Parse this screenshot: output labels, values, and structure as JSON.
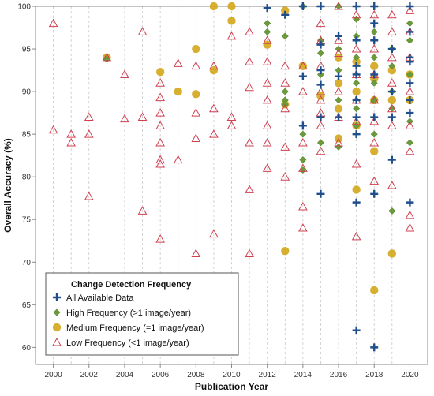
{
  "chart_data": {
    "type": "scatter",
    "xlabel": "Publication Year",
    "ylabel": "Overall Accuracy (%)",
    "xlim": [
      1999,
      2021
    ],
    "ylim": [
      58,
      100
    ],
    "x_ticks": [
      2000,
      2002,
      2004,
      2006,
      2008,
      2010,
      2012,
      2014,
      2016,
      2018,
      2020
    ],
    "y_ticks": [
      60,
      65,
      70,
      75,
      80,
      85,
      90,
      95,
      100
    ],
    "grid": "vertical dashed",
    "legend": {
      "title": "Change Detection Frequency",
      "placement": "bottom-left"
    },
    "series": [
      {
        "name": "All Available Data",
        "marker": "plus",
        "color": "#1f4e8c",
        "points": [
          [
            2012,
            99.8
          ],
          [
            2013,
            99
          ],
          [
            2014,
            100
          ],
          [
            2014,
            91.8
          ],
          [
            2014,
            86
          ],
          [
            2015,
            100
          ],
          [
            2015,
            95.5
          ],
          [
            2015,
            92.5
          ],
          [
            2015,
            90.8
          ],
          [
            2015,
            87
          ],
          [
            2015,
            78
          ],
          [
            2016,
            96.5
          ],
          [
            2016,
            91.8
          ],
          [
            2016,
            87
          ],
          [
            2017,
            100
          ],
          [
            2017,
            96
          ],
          [
            2017,
            93
          ],
          [
            2017,
            92
          ],
          [
            2017,
            89
          ],
          [
            2017,
            87
          ],
          [
            2017,
            85
          ],
          [
            2017,
            77
          ],
          [
            2017,
            62
          ],
          [
            2018,
            100
          ],
          [
            2018,
            98
          ],
          [
            2018,
            96
          ],
          [
            2018,
            92
          ],
          [
            2018,
            87
          ],
          [
            2018,
            78
          ],
          [
            2018,
            60
          ],
          [
            2019,
            95
          ],
          [
            2019,
            90
          ],
          [
            2019,
            87
          ],
          [
            2019,
            82
          ],
          [
            2020,
            100
          ],
          [
            2020,
            97
          ],
          [
            2020,
            94
          ],
          [
            2020,
            93.5
          ],
          [
            2020,
            91
          ],
          [
            2020,
            89
          ],
          [
            2020,
            87.5
          ],
          [
            2020,
            77
          ]
        ]
      },
      {
        "name": "High Frequency (>1 image/year)",
        "marker": "diamond",
        "color": "#6a9a3a",
        "points": [
          [
            2003,
            93.8
          ],
          [
            2012,
            98
          ],
          [
            2012,
            97
          ],
          [
            2013,
            96.5
          ],
          [
            2013,
            90
          ],
          [
            2013,
            89
          ],
          [
            2013,
            88.5
          ],
          [
            2014,
            100
          ],
          [
            2014,
            85
          ],
          [
            2014,
            82
          ],
          [
            2014,
            80.8
          ],
          [
            2015,
            96
          ],
          [
            2015,
            94.5
          ],
          [
            2015,
            92
          ],
          [
            2015,
            84
          ],
          [
            2016,
            100
          ],
          [
            2016,
            95
          ],
          [
            2016,
            92.5
          ],
          [
            2016,
            89
          ],
          [
            2016,
            83.5
          ],
          [
            2017,
            98.5
          ],
          [
            2017,
            96.5
          ],
          [
            2017,
            94
          ],
          [
            2017,
            91
          ],
          [
            2017,
            88
          ],
          [
            2017,
            86
          ],
          [
            2018,
            97
          ],
          [
            2018,
            94
          ],
          [
            2018,
            91
          ],
          [
            2018,
            89
          ],
          [
            2018,
            85
          ],
          [
            2019,
            95
          ],
          [
            2019,
            93
          ],
          [
            2019,
            90
          ],
          [
            2019,
            88
          ],
          [
            2019,
            76
          ],
          [
            2020,
            98
          ],
          [
            2020,
            96
          ],
          [
            2020,
            92
          ],
          [
            2020,
            86.5
          ],
          [
            2020,
            84
          ]
        ]
      },
      {
        "name": "Medium Frequency (=1 image/year)",
        "marker": "circle",
        "color": "#d4a820",
        "points": [
          [
            2003,
            94
          ],
          [
            2006,
            92.3
          ],
          [
            2007,
            90
          ],
          [
            2008,
            95
          ],
          [
            2008,
            89.7
          ],
          [
            2009,
            100
          ],
          [
            2009,
            92.5
          ],
          [
            2010,
            100
          ],
          [
            2010,
            98.3
          ],
          [
            2012,
            95.5
          ],
          [
            2013,
            99.5
          ],
          [
            2013,
            88.5
          ],
          [
            2013,
            71.3
          ],
          [
            2014,
            93
          ],
          [
            2015,
            89.5
          ],
          [
            2016,
            94
          ],
          [
            2016,
            91
          ],
          [
            2016,
            88
          ],
          [
            2016,
            84.5
          ],
          [
            2017,
            93.5
          ],
          [
            2017,
            90
          ],
          [
            2017,
            86
          ],
          [
            2017,
            78.5
          ],
          [
            2018,
            93
          ],
          [
            2018,
            91.5
          ],
          [
            2018,
            89
          ],
          [
            2018,
            83
          ],
          [
            2018,
            66.7
          ],
          [
            2019,
            92.5
          ],
          [
            2019,
            89
          ],
          [
            2019,
            71
          ],
          [
            2020,
            92
          ],
          [
            2020,
            89
          ]
        ]
      },
      {
        "name": "Low Frequency (<1 image/year)",
        "marker": "triangle",
        "color": "#d04050",
        "points": [
          [
            2000,
            98
          ],
          [
            2000,
            85.5
          ],
          [
            2001,
            85
          ],
          [
            2001,
            84
          ],
          [
            2002,
            87
          ],
          [
            2002,
            85
          ],
          [
            2002,
            77.7
          ],
          [
            2003,
            94
          ],
          [
            2004,
            92
          ],
          [
            2004,
            86.8
          ],
          [
            2005,
            97
          ],
          [
            2005,
            87
          ],
          [
            2005,
            76
          ],
          [
            2006,
            91
          ],
          [
            2006,
            89.3
          ],
          [
            2006,
            87.5
          ],
          [
            2006,
            86
          ],
          [
            2006,
            84
          ],
          [
            2006,
            82
          ],
          [
            2006,
            81.5
          ],
          [
            2006,
            72.7
          ],
          [
            2007,
            93.3
          ],
          [
            2007,
            82
          ],
          [
            2008,
            93
          ],
          [
            2008,
            87.5
          ],
          [
            2008,
            84.5
          ],
          [
            2008,
            71
          ],
          [
            2009,
            93
          ],
          [
            2009,
            88
          ],
          [
            2009,
            85
          ],
          [
            2009,
            73.3
          ],
          [
            2010,
            96.5
          ],
          [
            2010,
            87
          ],
          [
            2010,
            86
          ],
          [
            2011,
            97
          ],
          [
            2011,
            93.5
          ],
          [
            2011,
            90.5
          ],
          [
            2011,
            84
          ],
          [
            2011,
            78.5
          ],
          [
            2011,
            71
          ],
          [
            2012,
            96
          ],
          [
            2012,
            93.5
          ],
          [
            2012,
            91
          ],
          [
            2012,
            89
          ],
          [
            2012,
            86
          ],
          [
            2012,
            84
          ],
          [
            2012,
            81
          ],
          [
            2013,
            93
          ],
          [
            2013,
            91
          ],
          [
            2013,
            88
          ],
          [
            2013,
            83.5
          ],
          [
            2013,
            80
          ],
          [
            2014,
            93
          ],
          [
            2014,
            90
          ],
          [
            2014,
            84
          ],
          [
            2014,
            81
          ],
          [
            2014,
            76.5
          ],
          [
            2014,
            74
          ],
          [
            2015,
            98
          ],
          [
            2015,
            96
          ],
          [
            2015,
            93
          ],
          [
            2015,
            90
          ],
          [
            2015,
            89
          ],
          [
            2015,
            87.5
          ],
          [
            2015,
            86
          ],
          [
            2015,
            83
          ],
          [
            2016,
            100
          ],
          [
            2016,
            96
          ],
          [
            2016,
            94.5
          ],
          [
            2016,
            90
          ],
          [
            2016,
            87
          ],
          [
            2016,
            84
          ],
          [
            2017,
            99
          ],
          [
            2017,
            95
          ],
          [
            2017,
            92
          ],
          [
            2017,
            89
          ],
          [
            2017,
            86.5
          ],
          [
            2017,
            81.5
          ],
          [
            2017,
            73
          ],
          [
            2018,
            99
          ],
          [
            2018,
            95
          ],
          [
            2018,
            92
          ],
          [
            2018,
            89
          ],
          [
            2018,
            86.5
          ],
          [
            2018,
            84
          ],
          [
            2018,
            79.5
          ],
          [
            2019,
            99
          ],
          [
            2019,
            97
          ],
          [
            2019,
            94
          ],
          [
            2019,
            91
          ],
          [
            2019,
            88
          ],
          [
            2019,
            86
          ],
          [
            2019,
            79
          ],
          [
            2020,
            99.5
          ],
          [
            2020,
            97
          ],
          [
            2020,
            94
          ],
          [
            2020,
            90
          ],
          [
            2020,
            86
          ],
          [
            2020,
            83
          ],
          [
            2020,
            75.5
          ],
          [
            2020,
            74
          ]
        ]
      }
    ]
  }
}
